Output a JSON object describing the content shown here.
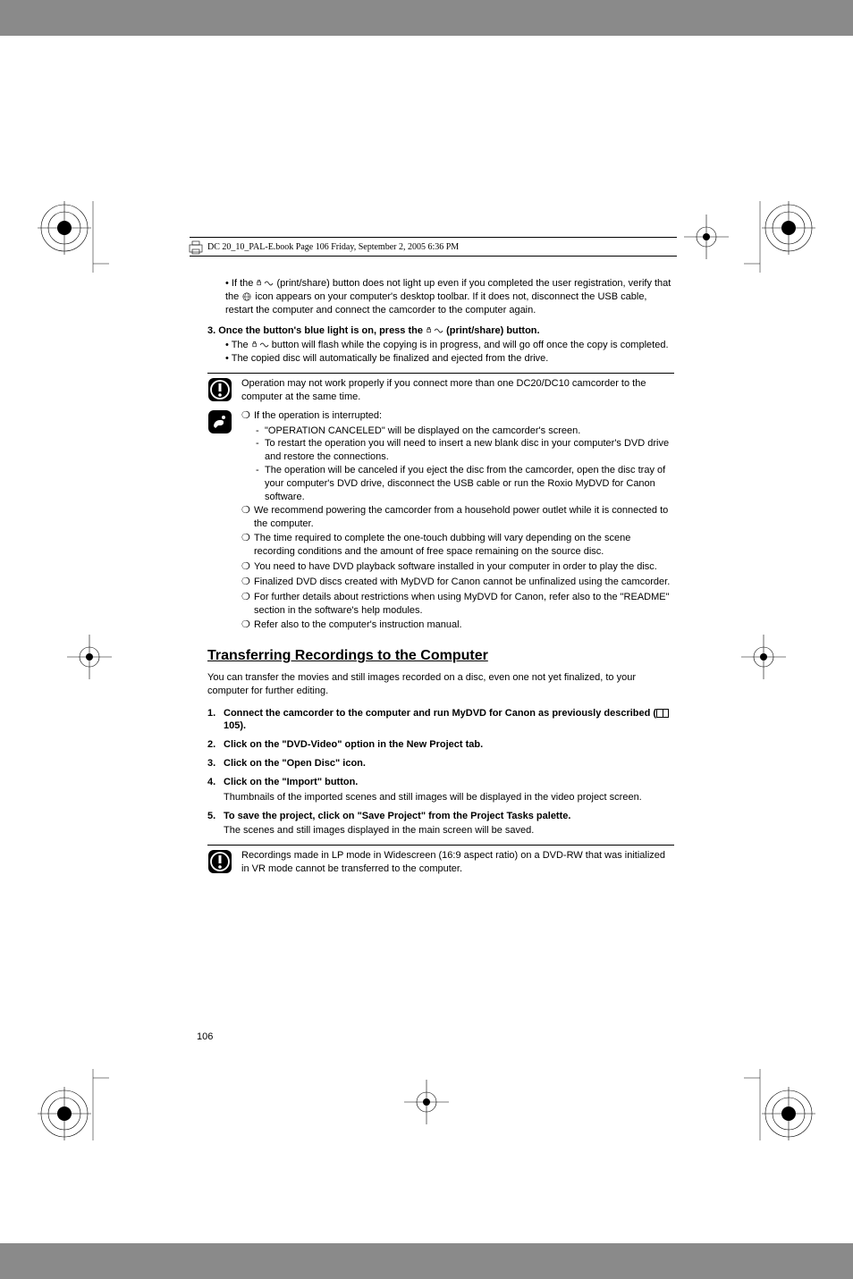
{
  "header": {
    "text": "DC 20_10_PAL-E.book  Page 106  Friday, September 2, 2005  6:36 PM"
  },
  "bullet_intro": "If the          (print/share) button does not light up even if you completed the user registration, verify that the        icon appears on your computer's desktop toolbar. If it does not, disconnect the USB cable, restart the computer and connect the camcorder to the computer again.",
  "step3": {
    "title_a": "3.  Once the button's blue light is on, press the ",
    "title_b": " (print/share) button.",
    "bullets": [
      "The          button will flash while the copying is in progress, and will go off once the copy is completed.",
      "The copied disc will automatically be finalized and ejected from the drive."
    ]
  },
  "warning1": "Operation may not work properly if you connect more than one DC20/DC10 camcorder to the computer at the same time.",
  "notes": [
    {
      "text": "If the operation is interrupted:",
      "subs": [
        "\"OPERATION CANCELED\" will be displayed on the camcorder's screen.",
        "To restart the operation you will need to insert a new blank disc in your computer's DVD drive and restore the connections.",
        "The operation will be canceled if you eject the disc from the camcorder, open the disc tray of your computer's DVD drive, disconnect the USB cable or run the Roxio MyDVD for Canon software."
      ]
    },
    {
      "text": "We recommend powering the camcorder from a household power outlet while it is connected to the computer."
    },
    {
      "text": "The time required to complete the one-touch dubbing will vary depending on the scene recording conditions and the amount of free space remaining on the source disc."
    },
    {
      "text": "You need to have DVD playback software installed in your computer in order to play the disc."
    },
    {
      "text": "Finalized DVD discs created with MyDVD for Canon cannot be unfinalized using the camcorder."
    },
    {
      "text": "For further details about restrictions when using MyDVD for Canon, refer also to the \"README\" section in the software's help modules."
    },
    {
      "text": "Refer also to the computer's instruction manual."
    }
  ],
  "section": {
    "heading": "Transferring Recordings to the Computer",
    "intro": "You can transfer the movies and still images recorded on a disc, even one not yet finalized, to your computer for further editing.",
    "steps": [
      {
        "num": "1.",
        "title_a": "Connect the camcorder to the computer and run MyDVD for Canon as previously described (",
        "title_b": " 105)."
      },
      {
        "num": "2.",
        "title": "Click on the \"DVD-Video\" option in the New Project tab."
      },
      {
        "num": "3.",
        "title": "Click on the \"Open Disc\" icon."
      },
      {
        "num": "4.",
        "title": "Click on the \"Import\" button.",
        "detail": "Thumbnails of the imported scenes and still images will be displayed in the video project screen."
      },
      {
        "num": "5.",
        "title": "To save the project, click on \"Save Project\" from the Project Tasks palette.",
        "detail": "The scenes and still images displayed in the main screen will be saved."
      }
    ]
  },
  "warning2": "Recordings made in LP mode in Widescreen (16:9 aspect ratio) on a DVD-RW that was initialized in VR mode cannot be transferred to the computer.",
  "page_number": "106",
  "colors": {
    "text": "#000000",
    "bg": "#ffffff"
  }
}
